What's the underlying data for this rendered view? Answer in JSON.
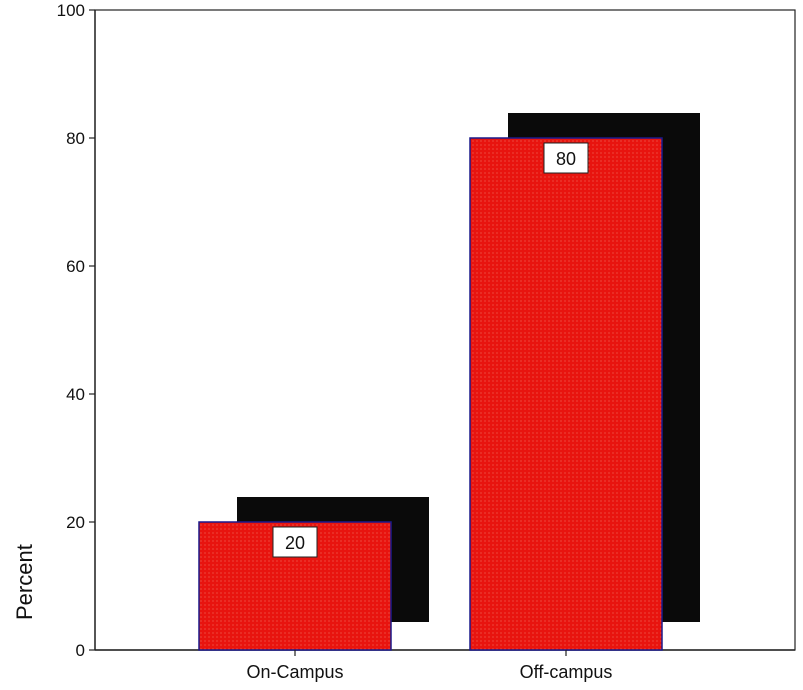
{
  "chart_data": {
    "type": "bar",
    "categories": [
      "On-Campus",
      "Off-campus"
    ],
    "values": [
      20,
      80
    ],
    "data_labels": [
      "20",
      "80"
    ],
    "title": "",
    "xlabel": "",
    "ylabel": "Percent",
    "ylim": [
      0,
      100
    ],
    "yticks": [
      0,
      20,
      40,
      60,
      80,
      100
    ],
    "ytick_labels": [
      "0",
      "20",
      "40",
      "60",
      "80",
      "100"
    ],
    "grid": false,
    "legend": "none",
    "style": "3d-shadow"
  },
  "colors": {
    "bar_fill": "#e8140f",
    "bar_border": "#1a1a8c",
    "shadow": "#0a0a0a",
    "axis": "#222222"
  }
}
